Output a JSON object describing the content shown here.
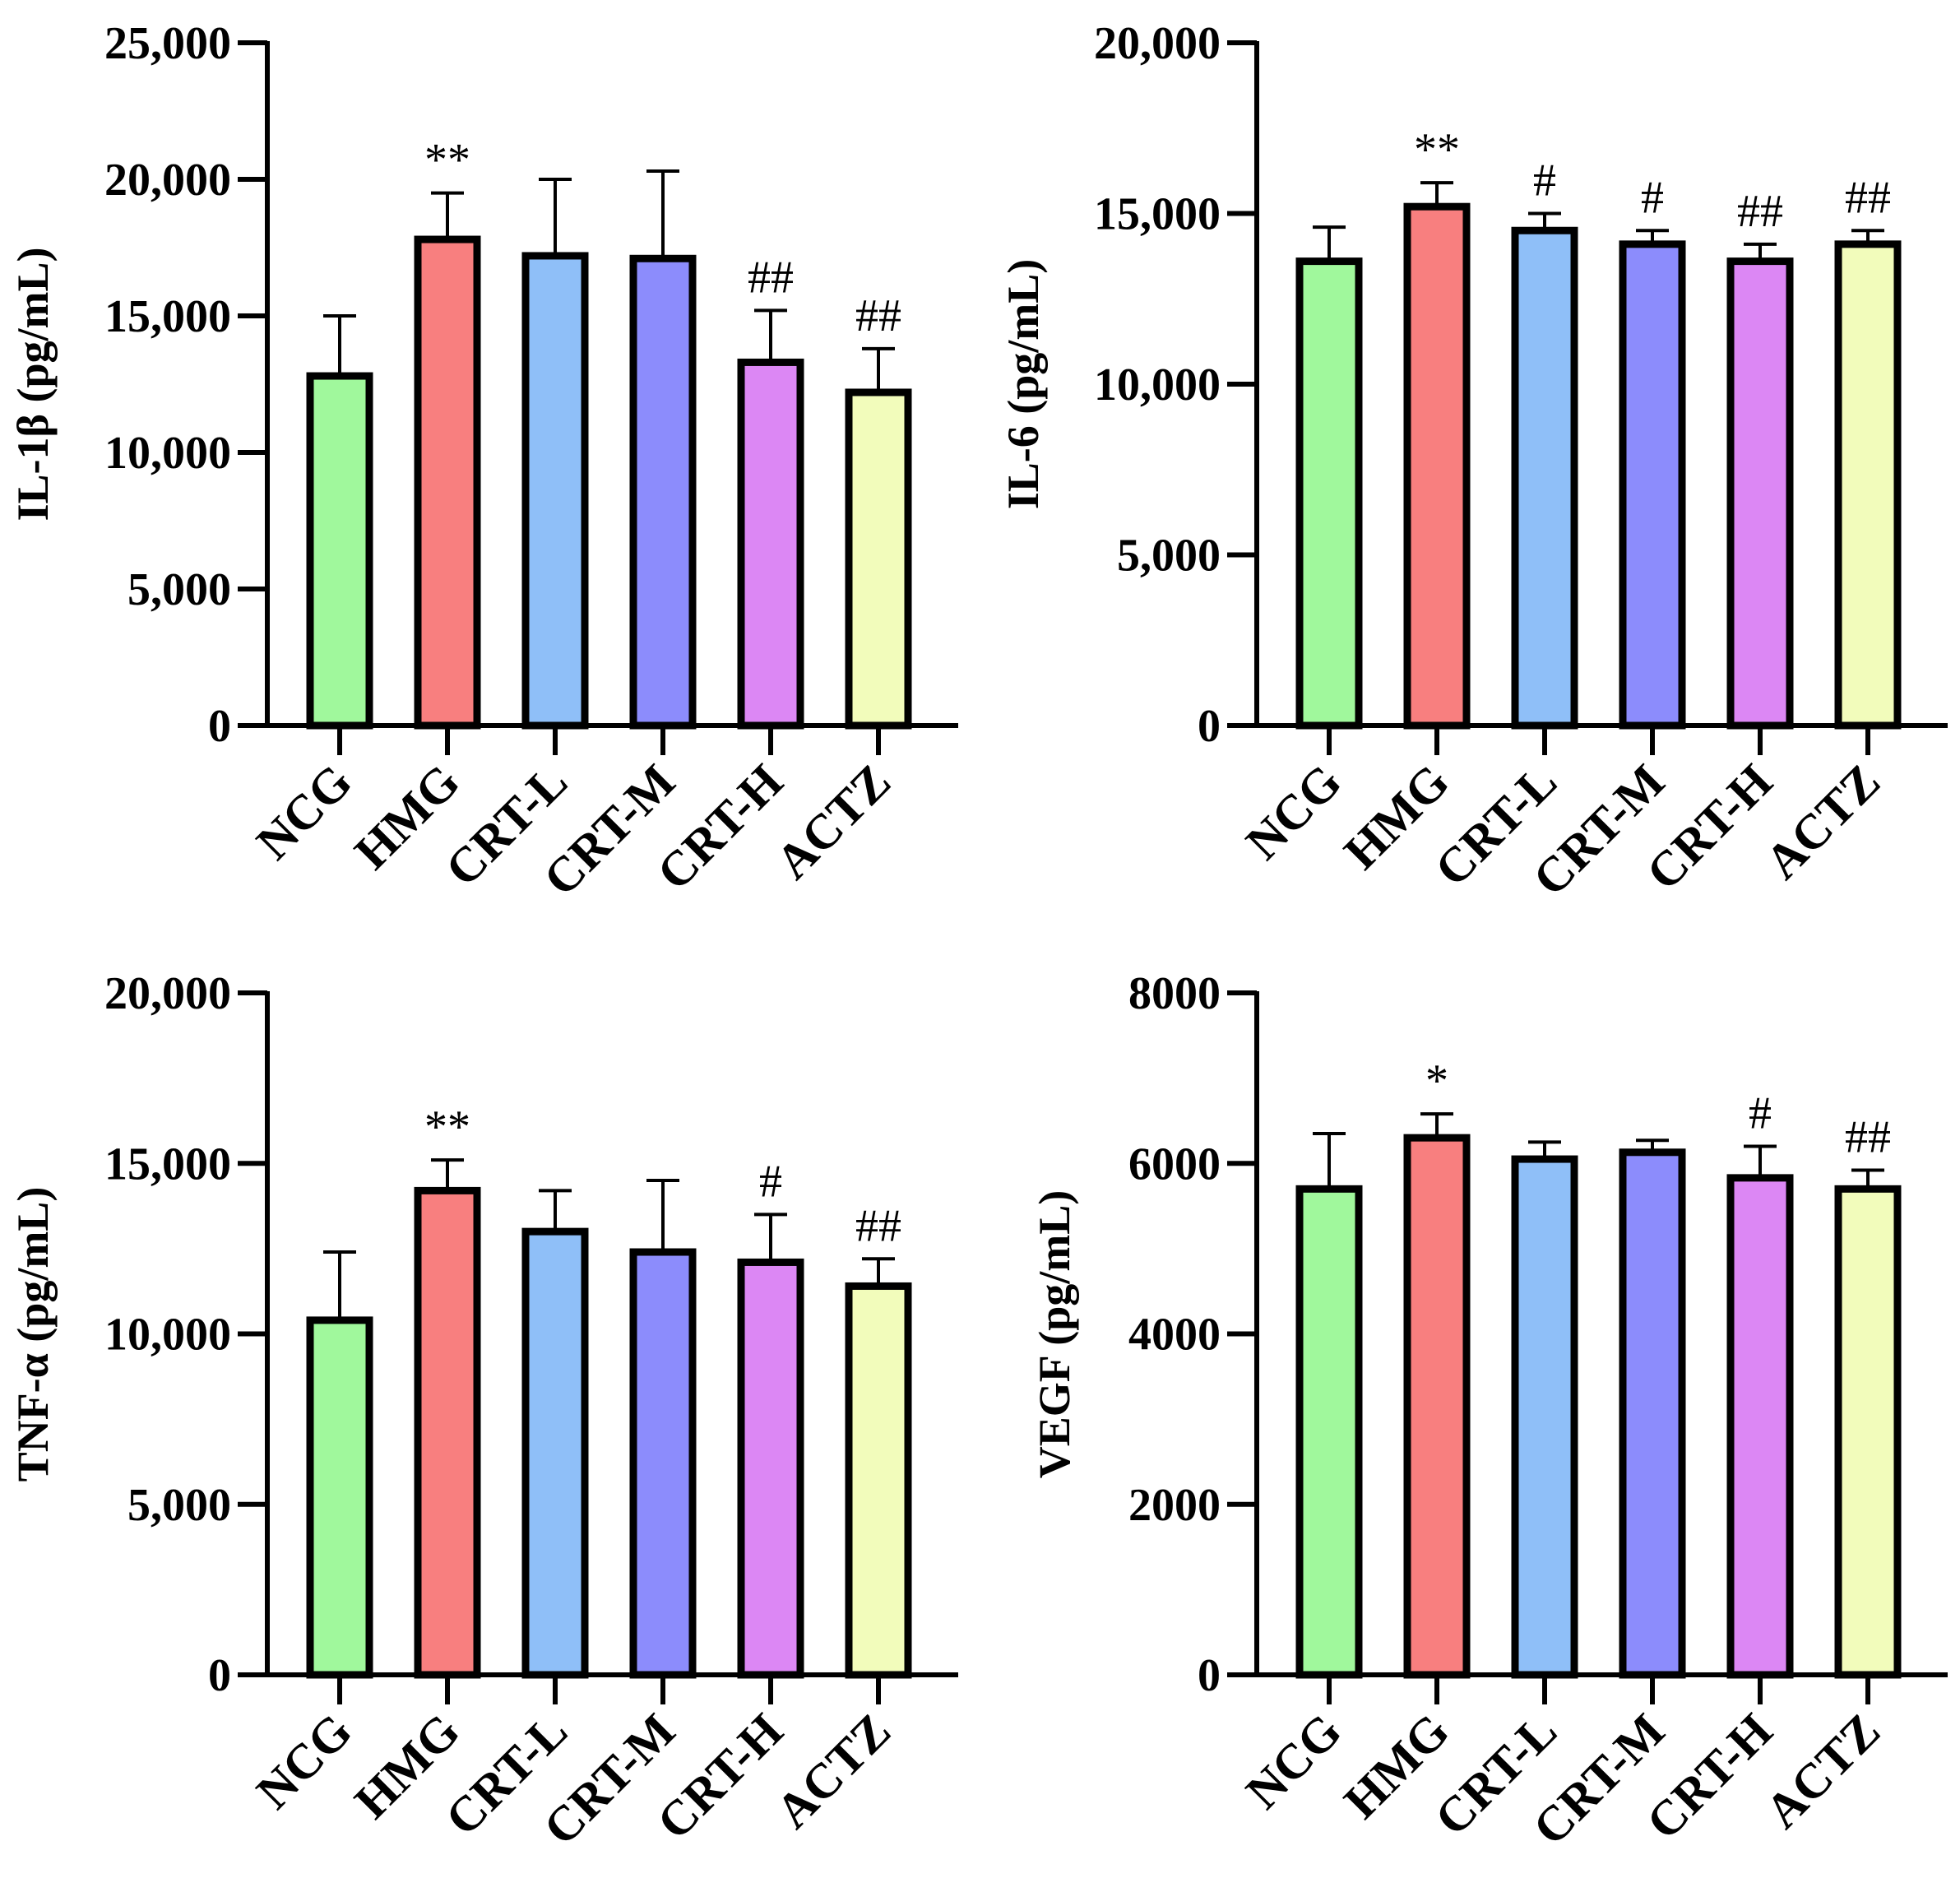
{
  "chart_data": [
    {
      "type": "bar",
      "id": "il1b",
      "ylabel": "IL-1β (pg/mL)",
      "ylim": [
        0,
        25000
      ],
      "yticks": [
        0,
        5000,
        10000,
        15000,
        20000,
        25000
      ],
      "ytick_labels": [
        "0",
        "5,000",
        "10,000",
        "15,000",
        "20,000",
        "25,000"
      ],
      "categories": [
        "NCG",
        "HMG",
        "CRT-L",
        "CRT-M",
        "CRT-H",
        "ACTZ"
      ],
      "values": [
        12800,
        17800,
        17200,
        17100,
        13300,
        12200
      ],
      "errors": [
        2200,
        1700,
        2800,
        3200,
        1900,
        1600
      ],
      "significance": [
        "",
        "**",
        "",
        "",
        "##",
        "##"
      ]
    },
    {
      "type": "bar",
      "id": "il6",
      "ylabel": "IL-6 (pg/mL)",
      "ylim": [
        0,
        20000
      ],
      "yticks": [
        0,
        5000,
        10000,
        15000,
        20000
      ],
      "ytick_labels": [
        "0",
        "5,000",
        "10,000",
        "15,000",
        "20,000"
      ],
      "categories": [
        "NCG",
        "HMG",
        "CRT-L",
        "CRT-M",
        "CRT-H",
        "ACTZ"
      ],
      "values": [
        13600,
        15200,
        14500,
        14100,
        13600,
        14100
      ],
      "errors": [
        1000,
        700,
        500,
        400,
        500,
        400
      ],
      "significance": [
        "",
        "**",
        "#",
        "#",
        "##",
        "##"
      ]
    },
    {
      "type": "bar",
      "id": "tnfa",
      "ylabel": "TNF-α (pg/mL)",
      "ylim": [
        0,
        20000
      ],
      "yticks": [
        0,
        5000,
        10000,
        15000,
        20000
      ],
      "ytick_labels": [
        "0",
        "5,000",
        "10,000",
        "15,000",
        "20,000"
      ],
      "categories": [
        "NCG",
        "HMG",
        "CRT-L",
        "CRT-M",
        "CRT-H",
        "ACTZ"
      ],
      "values": [
        10400,
        14200,
        13000,
        12400,
        12100,
        11400
      ],
      "errors": [
        2000,
        900,
        1200,
        2100,
        1400,
        800
      ],
      "significance": [
        "",
        "**",
        "",
        "",
        "#",
        "##"
      ]
    },
    {
      "type": "bar",
      "id": "vegf",
      "ylabel": "VEGF (pg/mL)",
      "ylim": [
        0,
        8000
      ],
      "yticks": [
        0,
        2000,
        4000,
        6000,
        8000
      ],
      "ytick_labels": [
        "0",
        "2000",
        "4000",
        "6000",
        "8000"
      ],
      "categories": [
        "NCG",
        "HMG",
        "CRT-L",
        "CRT-M",
        "CRT-H",
        "ACTZ"
      ],
      "values": [
        5700,
        6300,
        6050,
        6130,
        5830,
        5700
      ],
      "errors": [
        650,
        280,
        200,
        140,
        370,
        220
      ],
      "significance": [
        "",
        "*",
        "",
        "",
        "#",
        "##"
      ]
    }
  ],
  "colors": {
    "bars": [
      "#a0f89c",
      "#f87f7f",
      "#8fbff8",
      "#8c8cfc",
      "#dc87f4",
      "#f2fcbb"
    ],
    "stroke": "#000000"
  }
}
